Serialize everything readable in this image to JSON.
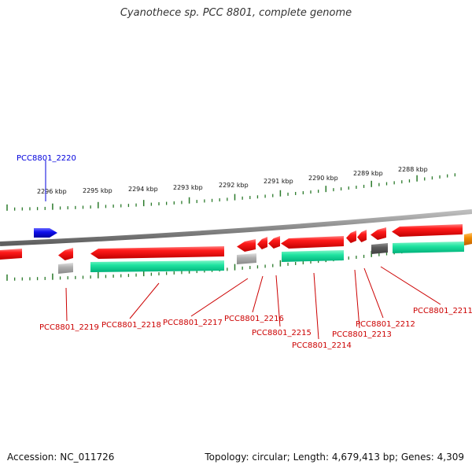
{
  "title": "Cyanothece sp. PCC 8801, complete genome",
  "footer": {
    "accession": "Accession: NC_011726",
    "summary": "Topology: circular; Length: 4,679,413 bp; Genes: 4,309"
  },
  "colors": {
    "cds": "#ee0000",
    "rna": "#808080",
    "protein": "#00d28c",
    "highlight": "#0000dd",
    "label": "#cc0000",
    "tick": "#2a7a2a",
    "backbone": "#8a8a8a",
    "other": "#ee8800"
  },
  "ruler": {
    "unit": "kbp",
    "labeled_positions": [
      2296,
      2295,
      2294,
      2293,
      2292,
      2291,
      2290,
      2289,
      2288
    ]
  },
  "genes": [
    {
      "id": "PCC8801_2220",
      "highlight": true
    },
    {
      "id": "PCC8801_2219"
    },
    {
      "id": "PCC8801_2218"
    },
    {
      "id": "PCC8801_2217"
    },
    {
      "id": "PCC8801_2216"
    },
    {
      "id": "PCC8801_2215"
    },
    {
      "id": "PCC8801_2214"
    },
    {
      "id": "PCC8801_2213"
    },
    {
      "id": "PCC8801_2212"
    },
    {
      "id": "PCC8801_2211"
    }
  ]
}
